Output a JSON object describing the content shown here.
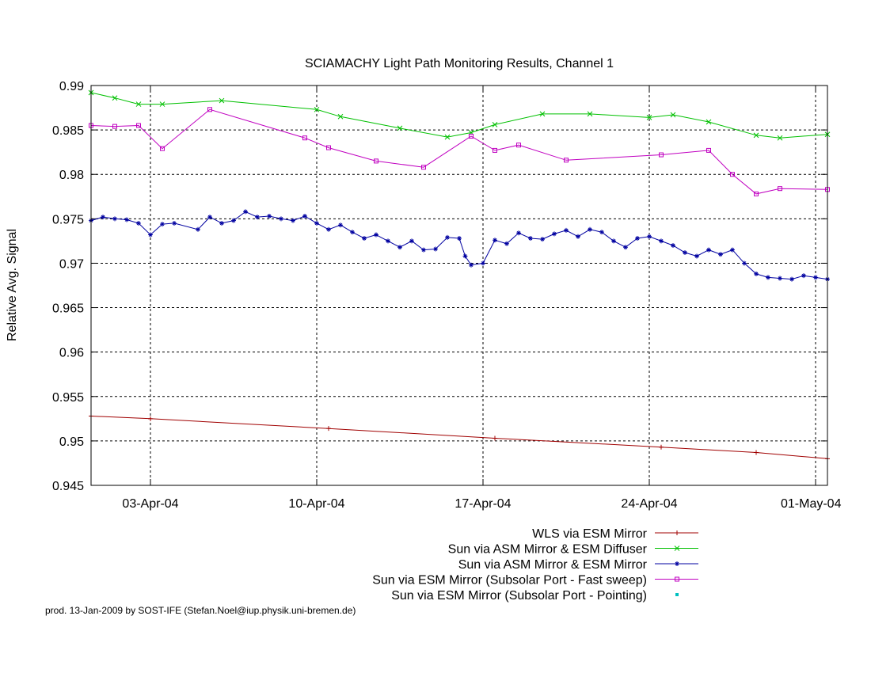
{
  "footer": "prod. 13-Jan-2009 by SOST-IFE (Stefan.Noel@iup.physik.uni-bremen.de)",
  "chart_data": {
    "type": "line",
    "title": "SCIAMACHY Light Path Monitoring Results, Channel 1",
    "xlabel": "",
    "ylabel": "Relative Avg. Signal",
    "x_unit": "date (2004)",
    "xlim": [
      "2004-03-31T12:00",
      "2004-05-01T12:00"
    ],
    "ylim": [
      0.945,
      0.99
    ],
    "y_ticks": [
      0.945,
      0.95,
      0.955,
      0.96,
      0.965,
      0.97,
      0.975,
      0.98,
      0.985,
      0.99
    ],
    "y_tick_labels": [
      "0.945",
      "0.95",
      "0.955",
      "0.96",
      "0.965",
      "0.97",
      "0.975",
      "0.98",
      "0.985",
      "0.99"
    ],
    "x_ticks": [
      "2004-04-03",
      "2004-04-10",
      "2004-04-17",
      "2004-04-24",
      "2004-05-01"
    ],
    "x_tick_labels": [
      "03-Apr-04",
      "10-Apr-04",
      "17-Apr-04",
      "24-Apr-04",
      "01-May-04"
    ],
    "grid": true,
    "legend_position": "below",
    "series": [
      {
        "name": "WLS via ESM Mirror",
        "color": "#a00000",
        "marker": "plus",
        "x": [
          "2004-03-31T12:00",
          "2004-04-03T00:00",
          "2004-04-10T12:00",
          "2004-04-17T12:00",
          "2004-04-24T12:00",
          "2004-04-28T12:00",
          "2004-05-01T12:00"
        ],
        "y": [
          0.9528,
          0.9525,
          0.9514,
          0.9503,
          0.9493,
          0.9487,
          0.948
        ]
      },
      {
        "name": "Sun via ASM Mirror & ESM Diffuser",
        "color": "#00c000",
        "marker": "cross",
        "x": [
          "2004-03-31T12:00",
          "2004-04-01T12:00",
          "2004-04-02T12:00",
          "2004-04-03T12:00",
          "2004-04-06T00:00",
          "2004-04-10T00:00",
          "2004-04-11T00:00",
          "2004-04-13T12:00",
          "2004-04-15T12:00",
          "2004-04-16T12:00",
          "2004-04-17T12:00",
          "2004-04-19T12:00",
          "2004-04-21T12:00",
          "2004-04-24T00:00",
          "2004-04-25T00:00",
          "2004-04-26T12:00",
          "2004-04-28T12:00",
          "2004-04-29T12:00",
          "2004-05-01T12:00"
        ],
        "y": [
          0.9892,
          0.9886,
          0.9879,
          0.9879,
          0.9883,
          0.9873,
          0.9865,
          0.9852,
          0.9842,
          0.9847,
          0.9856,
          0.9868,
          0.9868,
          0.9864,
          0.9867,
          0.9859,
          0.9844,
          0.9841,
          0.9845
        ]
      },
      {
        "name": "Sun via ASM Mirror & ESM Mirror",
        "color": "#0000a0",
        "marker": "star",
        "x": [
          "2004-03-31T12:00",
          "2004-04-01T00:00",
          "2004-04-01T12:00",
          "2004-04-02T00:00",
          "2004-04-02T12:00",
          "2004-04-03T00:00",
          "2004-04-03T12:00",
          "2004-04-04T00:00",
          "2004-04-05T00:00",
          "2004-04-05T12:00",
          "2004-04-06T00:00",
          "2004-04-06T12:00",
          "2004-04-07T00:00",
          "2004-04-07T12:00",
          "2004-04-08T00:00",
          "2004-04-08T12:00",
          "2004-04-09T00:00",
          "2004-04-09T12:00",
          "2004-04-10T00:00",
          "2004-04-10T12:00",
          "2004-04-11T00:00",
          "2004-04-11T12:00",
          "2004-04-12T00:00",
          "2004-04-12T12:00",
          "2004-04-13T00:00",
          "2004-04-13T12:00",
          "2004-04-14T00:00",
          "2004-04-14T12:00",
          "2004-04-15T00:00",
          "2004-04-15T12:00",
          "2004-04-16T00:00",
          "2004-04-16T06:00",
          "2004-04-16T12:00",
          "2004-04-17T00:00",
          "2004-04-17T12:00",
          "2004-04-18T00:00",
          "2004-04-18T12:00",
          "2004-04-19T00:00",
          "2004-04-19T12:00",
          "2004-04-20T00:00",
          "2004-04-20T12:00",
          "2004-04-21T00:00",
          "2004-04-21T12:00",
          "2004-04-22T00:00",
          "2004-04-22T12:00",
          "2004-04-23T00:00",
          "2004-04-23T12:00",
          "2004-04-24T00:00",
          "2004-04-24T12:00",
          "2004-04-25T00:00",
          "2004-04-25T12:00",
          "2004-04-26T00:00",
          "2004-04-26T12:00",
          "2004-04-27T00:00",
          "2004-04-27T12:00",
          "2004-04-28T00:00",
          "2004-04-28T12:00",
          "2004-04-29T00:00",
          "2004-04-29T12:00",
          "2004-04-30T00:00",
          "2004-04-30T12:00",
          "2004-05-01T00:00",
          "2004-05-01T12:00"
        ],
        "y": [
          0.9748,
          0.9752,
          0.975,
          0.9749,
          0.9745,
          0.9732,
          0.9744,
          0.9745,
          0.9738,
          0.9752,
          0.9745,
          0.9748,
          0.9758,
          0.9752,
          0.9753,
          0.975,
          0.9748,
          0.9753,
          0.9745,
          0.9738,
          0.9743,
          0.9735,
          0.9728,
          0.9732,
          0.9725,
          0.9718,
          0.9725,
          0.9715,
          0.9716,
          0.9729,
          0.9728,
          0.9708,
          0.9698,
          0.97,
          0.9726,
          0.9722,
          0.9734,
          0.9728,
          0.9727,
          0.9733,
          0.9737,
          0.973,
          0.9738,
          0.9735,
          0.9725,
          0.9718,
          0.9728,
          0.973,
          0.9725,
          0.972,
          0.9712,
          0.9708,
          0.9715,
          0.971,
          0.9715,
          0.97,
          0.9688,
          0.9684,
          0.9683,
          0.9682,
          0.9686,
          0.9684,
          0.9682
        ]
      },
      {
        "name": "Sun via ESM Mirror (Subsolar Port - Fast sweep)",
        "color": "#c000c0",
        "marker": "square",
        "x": [
          "2004-03-31T12:00",
          "2004-04-01T12:00",
          "2004-04-02T12:00",
          "2004-04-03T12:00",
          "2004-04-05T12:00",
          "2004-04-09T12:00",
          "2004-04-10T12:00",
          "2004-04-12T12:00",
          "2004-04-14T12:00",
          "2004-04-16T12:00",
          "2004-04-17T12:00",
          "2004-04-18T12:00",
          "2004-04-20T12:00",
          "2004-04-24T12:00",
          "2004-04-26T12:00",
          "2004-04-27T12:00",
          "2004-04-28T12:00",
          "2004-04-29T12:00",
          "2004-05-01T12:00"
        ],
        "y": [
          0.9855,
          0.9854,
          0.9855,
          0.9829,
          0.9873,
          0.9841,
          0.983,
          0.9815,
          0.9808,
          0.9843,
          0.9827,
          0.9833,
          0.9816,
          0.9822,
          0.9827,
          0.98,
          0.9778,
          0.9784,
          0.9783
        ]
      },
      {
        "name": "Sun via ESM Mirror (Subsolar Port - Pointing)",
        "color": "#00c0c0",
        "marker": "dot",
        "x": [],
        "y": []
      }
    ]
  }
}
